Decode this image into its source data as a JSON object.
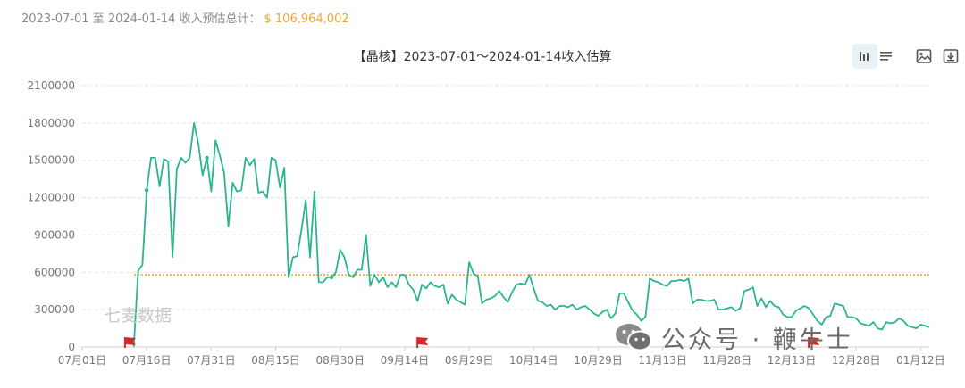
{
  "summary": {
    "label": "2023-07-01 至 2024-01-14 收入预估总计：",
    "amount": "$ 106,964,002"
  },
  "colors": {
    "line": "#2bb58f",
    "average_line": "#f0a537",
    "grid": "#e3e3e3",
    "axis_text": "#777777",
    "flag": "#d9262c",
    "toolbar_active": "#eaf1f6",
    "icon": "#555555"
  },
  "toolbar": {
    "icons": [
      "bar-chart-icon",
      "list-icon",
      "image-icon",
      "download-icon"
    ]
  },
  "watermarks": {
    "left": "七麦数据",
    "right": "公众号 · 鞭牛士",
    "right_icon": "wechat-icon"
  },
  "chart_data": {
    "type": "line",
    "title": "【晶核】2023-07-01～2024-01-14收入估算",
    "xlabel": "",
    "ylabel": "",
    "x_ticks": [
      "07月01日",
      "07月16日",
      "07月31日",
      "08月15日",
      "08月30日",
      "09月14日",
      "09月29日",
      "10月14日",
      "10月29日",
      "11月13日",
      "11月28日",
      "12月13日",
      "12月28日",
      "01月12日"
    ],
    "y_ticks": [
      0,
      300000,
      600000,
      900000,
      1200000,
      1500000,
      1800000,
      2100000
    ],
    "ylim": [
      0,
      2100000
    ],
    "x_start": "2023-07-01",
    "x_end": "2024-01-14",
    "grid": true,
    "average_line": 580000,
    "flag_dates": [
      "2023-07-12",
      "2023-09-18",
      "2023-11-08",
      "2023-12-18"
    ],
    "series": [
      {
        "x": [
          "2023-07-13",
          "2023-07-14",
          "2023-07-15",
          "2023-07-16",
          "2023-07-17",
          "2023-07-18",
          "2023-07-19",
          "2023-07-20",
          "2023-07-21",
          "2023-07-22",
          "2023-07-23",
          "2023-07-24",
          "2023-07-25",
          "2023-07-26",
          "2023-07-27",
          "2023-07-28",
          "2023-07-29",
          "2023-07-30",
          "2023-07-31",
          "2023-08-01",
          "2023-08-02",
          "2023-08-03",
          "2023-08-04",
          "2023-08-05",
          "2023-08-06",
          "2023-08-07",
          "2023-08-08",
          "2023-08-09",
          "2023-08-10",
          "2023-08-11",
          "2023-08-12",
          "2023-08-13",
          "2023-08-14",
          "2023-08-15",
          "2023-08-16",
          "2023-08-17",
          "2023-08-18",
          "2023-08-19",
          "2023-08-20",
          "2023-08-21",
          "2023-08-22",
          "2023-08-23",
          "2023-08-24",
          "2023-08-25",
          "2023-08-26",
          "2023-08-27",
          "2023-08-28",
          "2023-08-29",
          "2023-08-30",
          "2023-08-31",
          "2023-09-01",
          "2023-09-02",
          "2023-09-03",
          "2023-09-04",
          "2023-09-05",
          "2023-09-06",
          "2023-09-07",
          "2023-09-08",
          "2023-09-09",
          "2023-09-10",
          "2023-09-11",
          "2023-09-12",
          "2023-09-13",
          "2023-09-14",
          "2023-09-15",
          "2023-09-16",
          "2023-09-17",
          "2023-09-18",
          "2023-09-19",
          "2023-09-20",
          "2023-09-21",
          "2023-09-22",
          "2023-09-23",
          "2023-09-24",
          "2023-09-25",
          "2023-09-26",
          "2023-09-27",
          "2023-09-28",
          "2023-09-29",
          "2023-09-30",
          "2023-10-01",
          "2023-10-02",
          "2023-10-03",
          "2023-10-04",
          "2023-10-05",
          "2023-10-06",
          "2023-10-07",
          "2023-10-08",
          "2023-10-09",
          "2023-10-10",
          "2023-10-11",
          "2023-10-12",
          "2023-10-13",
          "2023-10-14",
          "2023-10-15",
          "2023-10-16",
          "2023-10-17",
          "2023-10-18",
          "2023-10-19",
          "2023-10-20",
          "2023-10-21",
          "2023-10-22",
          "2023-10-23",
          "2023-10-24",
          "2023-10-25",
          "2023-10-26",
          "2023-10-27",
          "2023-10-28",
          "2023-10-29",
          "2023-10-30",
          "2023-10-31",
          "2023-11-01",
          "2023-11-02",
          "2023-11-03",
          "2023-11-04",
          "2023-11-05",
          "2023-11-06",
          "2023-11-07",
          "2023-11-08",
          "2023-11-09",
          "2023-11-10",
          "2023-11-11",
          "2023-11-12",
          "2023-11-13",
          "2023-11-14",
          "2023-11-15",
          "2023-11-16",
          "2023-11-17",
          "2023-11-18",
          "2023-11-19",
          "2023-11-20",
          "2023-11-21",
          "2023-11-22",
          "2023-11-23",
          "2023-11-24",
          "2023-11-25",
          "2023-11-26",
          "2023-11-27",
          "2023-11-28",
          "2023-11-29",
          "2023-11-30",
          "2023-12-01",
          "2023-12-02",
          "2023-12-03",
          "2023-12-04",
          "2023-12-05",
          "2023-12-06",
          "2023-12-07",
          "2023-12-08",
          "2023-12-09",
          "2023-12-10",
          "2023-12-11",
          "2023-12-12",
          "2023-12-13",
          "2023-12-14",
          "2023-12-15",
          "2023-12-16",
          "2023-12-17",
          "2023-12-18",
          "2023-12-19",
          "2023-12-20",
          "2023-12-21",
          "2023-12-22",
          "2023-12-23",
          "2023-12-24",
          "2023-12-25",
          "2023-12-26",
          "2023-12-27",
          "2023-12-28",
          "2023-12-29",
          "2023-12-30",
          "2023-12-31",
          "2024-01-01",
          "2024-01-02",
          "2024-01-03",
          "2024-01-04",
          "2024-01-05",
          "2024-01-06",
          "2024-01-07",
          "2024-01-08",
          "2024-01-09",
          "2024-01-10",
          "2024-01-11",
          "2024-01-12",
          "2024-01-13",
          "2024-01-14"
        ],
        "values": [
          0,
          610000,
          660000,
          1260000,
          1520000,
          1520000,
          1290000,
          1510000,
          1490000,
          720000,
          1430000,
          1520000,
          1480000,
          1520000,
          1800000,
          1640000,
          1380000,
          1520000,
          1250000,
          1660000,
          1540000,
          1400000,
          970000,
          1320000,
          1250000,
          1260000,
          1520000,
          1460000,
          1510000,
          1240000,
          1250000,
          1200000,
          1520000,
          1500000,
          1280000,
          1440000,
          560000,
          720000,
          730000,
          940000,
          1180000,
          720000,
          1250000,
          520000,
          520000,
          560000,
          560000,
          600000,
          780000,
          720000,
          580000,
          560000,
          620000,
          620000,
          900000,
          490000,
          580000,
          520000,
          560000,
          480000,
          520000,
          480000,
          580000,
          580000,
          500000,
          460000,
          370000,
          500000,
          470000,
          520000,
          490000,
          480000,
          500000,
          350000,
          420000,
          380000,
          360000,
          340000,
          680000,
          590000,
          570000,
          350000,
          380000,
          390000,
          410000,
          450000,
          400000,
          360000,
          440000,
          500000,
          510000,
          500000,
          580000,
          470000,
          370000,
          360000,
          330000,
          340000,
          300000,
          330000,
          330000,
          320000,
          340000,
          300000,
          320000,
          330000,
          300000,
          270000,
          250000,
          280000,
          300000,
          230000,
          270000,
          430000,
          430000,
          360000,
          290000,
          260000,
          210000,
          240000,
          550000,
          530000,
          520000,
          500000,
          490000,
          530000,
          530000,
          540000,
          530000,
          550000,
          350000,
          380000,
          380000,
          370000,
          370000,
          380000,
          300000,
          300000,
          310000,
          320000,
          290000,
          310000,
          450000,
          460000,
          480000,
          330000,
          390000,
          320000,
          370000,
          330000,
          320000,
          260000,
          240000,
          240000,
          290000,
          310000,
          330000,
          310000,
          260000,
          210000,
          180000,
          240000,
          250000,
          350000,
          340000,
          330000,
          240000,
          240000,
          230000,
          190000,
          180000,
          170000,
          200000,
          150000,
          140000,
          200000,
          190000,
          200000,
          230000,
          210000,
          170000,
          160000,
          150000,
          180000,
          170000,
          160000
        ]
      }
    ]
  }
}
